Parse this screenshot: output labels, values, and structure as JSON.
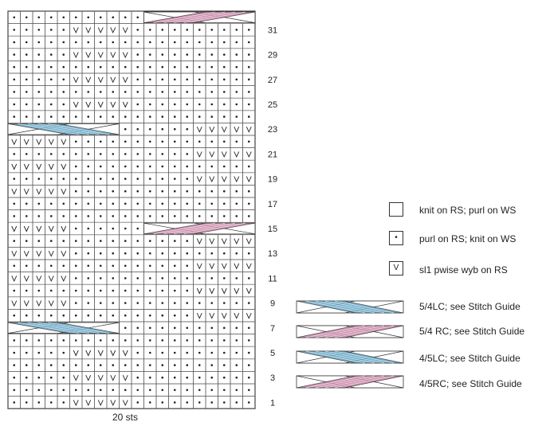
{
  "chart": {
    "stitch_count": 20,
    "row_count": 32,
    "row_labels": [
      "1",
      "3",
      "5",
      "7",
      "9",
      "11",
      "13",
      "15",
      "17",
      "19",
      "21",
      "23",
      "25",
      "27",
      "29",
      "31"
    ],
    "colors": {
      "blue": "#5fa3c4",
      "pink": "#c77fa3",
      "grid": "#555555"
    },
    "rows": [
      ".....VVVVV..........",
      "....................",
      ".....VVVVV..........",
      "....................",
      ".....VVVVV..........",
      "....................",
      "....................",
      "...............VVVVV",
      "VVVVV...............",
      "...............VVVVV",
      "VVVVV...............",
      "...............VVVVV",
      "VVVVV...............",
      "...............VVVVV",
      "VVVVV...............",
      "....................",
      "....................",
      "VVVVV...............",
      "...............VVVVV",
      "VVVVV...............",
      "...............VVVVV",
      "VVVVV...............",
      "...............VVVVV",
      "....................",
      ".....VVVVV..........",
      "....................",
      ".....VVVVV..........",
      "....................",
      ".....VVVVV..........",
      "....................",
      ".....VVVVV..........",
      "...................."
    ],
    "cables": [
      {
        "row": 7,
        "start": 0,
        "width": 9,
        "type": "5/4LC",
        "color": "blue"
      },
      {
        "row": 15,
        "start": 11,
        "width": 9,
        "type": "5/4RC",
        "color": "pink"
      },
      {
        "row": 23,
        "start": 0,
        "width": 9,
        "type": "4/5LC",
        "color": "blue"
      },
      {
        "row": 32,
        "start": 11,
        "width": 9,
        "type": "4/5RC",
        "color": "pink"
      }
    ]
  },
  "legend": {
    "knit": "knit on RS; purl on WS",
    "purl": "purl on RS; knit on WS",
    "slip": "sl1 pwise wyb on RS",
    "slip_symbol": "V",
    "purl_symbol": "•",
    "cable_5_4_lc": "5/4LC; see Stitch Guide",
    "cable_5_4_rc": "5/4 RC; see Stitch Guide",
    "cable_4_5_lc": "4/5LC; see Stitch Guide",
    "cable_4_5_rc": "4/5RC; see Stitch Guide"
  },
  "footer": "20 sts"
}
